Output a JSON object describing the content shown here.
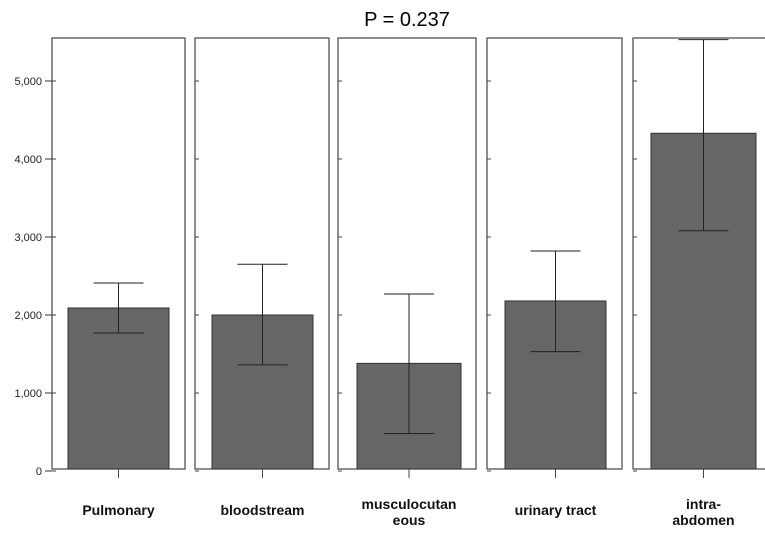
{
  "chart_data": {
    "type": "bar",
    "title": "P = 0.237",
    "xlabel": "",
    "ylabel": "",
    "ylim": [
      0,
      5500
    ],
    "yticks": [
      "0",
      "1,000",
      "2,000",
      "3,000",
      "4,000",
      "5,000"
    ],
    "ytick_values": [
      0,
      1000,
      2000,
      3000,
      4000,
      5000
    ],
    "categories": [
      [
        "Pulmonary"
      ],
      [
        "bloodstream"
      ],
      [
        "musculocutan",
        "eous"
      ],
      [
        "urinary tract"
      ],
      [
        "intra-",
        "abdomen"
      ]
    ],
    "values": [
      2090,
      2000,
      1380,
      2180,
      4330
    ],
    "error_low": [
      1770,
      1360,
      480,
      1530,
      3080
    ],
    "error_high": [
      2410,
      2650,
      2270,
      2820,
      5530
    ],
    "bar_color": "#666666",
    "grid": false,
    "legend": "none"
  }
}
